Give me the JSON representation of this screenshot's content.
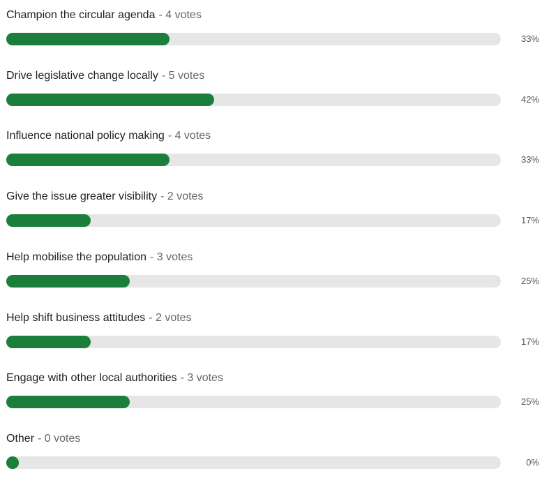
{
  "poll": {
    "options": [
      {
        "label": "Champion the circular agenda",
        "votes": "- 4 votes",
        "percent": 33,
        "percent_label": "33%"
      },
      {
        "label": "Drive legislative change locally",
        "votes": "- 5 votes",
        "percent": 42,
        "percent_label": "42%"
      },
      {
        "label": "Influence national policy making",
        "votes": "- 4 votes",
        "percent": 33,
        "percent_label": "33%"
      },
      {
        "label": "Give the issue greater visibility",
        "votes": "- 2 votes",
        "percent": 17,
        "percent_label": "17%"
      },
      {
        "label": "Help mobilise the population",
        "votes": "- 3 votes",
        "percent": 25,
        "percent_label": "25%"
      },
      {
        "label": "Help shift business attitudes",
        "votes": "- 2 votes",
        "percent": 17,
        "percent_label": "17%"
      },
      {
        "label": "Engage with other local authorities",
        "votes": "- 3 votes",
        "percent": 25,
        "percent_label": "25%"
      },
      {
        "label": "Other",
        "votes": "- 0 votes",
        "percent": 0,
        "percent_label": "0%"
      }
    ],
    "color": "#1b7f3b",
    "track_color": "#e6e6e6"
  }
}
